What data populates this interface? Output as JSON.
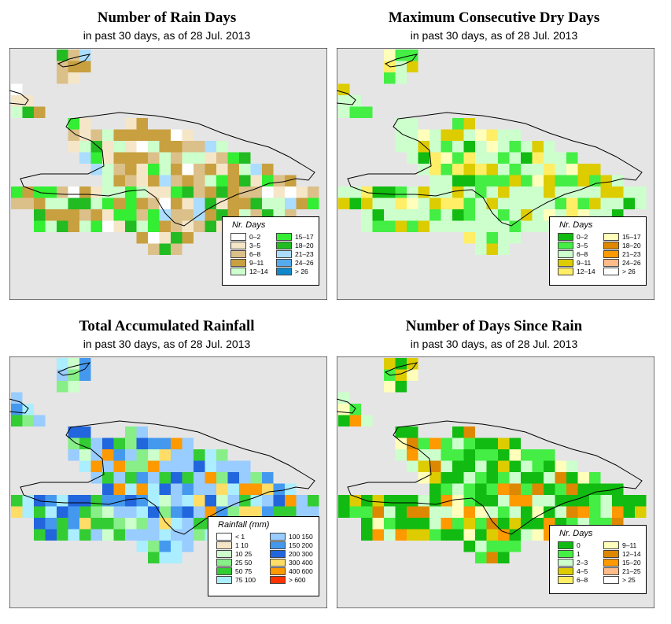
{
  "panels": [
    {
      "title": "Number of Rain Days",
      "subtitle": "in past 30 days, as of  28 Jul. 2013",
      "legend_title": "Nr. Days",
      "legend": [
        {
          "label": "0–2",
          "color": "#ffffff"
        },
        {
          "label": "3–5",
          "color": "#f5e6c8"
        },
        {
          "label": "6–8",
          "color": "#dcc08a"
        },
        {
          "label": "9–11",
          "color": "#c8a040"
        },
        {
          "label": "12–14",
          "color": "#ccffcc"
        },
        {
          "label": "15–17",
          "color": "#33ee33"
        },
        {
          "label": "18–20",
          "color": "#22bb22"
        },
        {
          "label": "21–23",
          "color": "#aaddff"
        },
        {
          "label": "24–26",
          "color": "#55aaee"
        },
        {
          "label": "> 26",
          "color": "#1188cc"
        }
      ]
    },
    {
      "title": "Maximum Consecutive Dry Days",
      "subtitle": "in past 30 days, as of  28 Jul. 2013",
      "legend_title": "Nr. Days",
      "legend": [
        {
          "label": "0–2",
          "color": "#11bb11"
        },
        {
          "label": "3–5",
          "color": "#44ee44"
        },
        {
          "label": "6–8",
          "color": "#ccffcc"
        },
        {
          "label": "9–11",
          "color": "#ddcc00"
        },
        {
          "label": "12–14",
          "color": "#ffee66"
        },
        {
          "label": "15–17",
          "color": "#ffffbb"
        },
        {
          "label": "18–20",
          "color": "#dd8800"
        },
        {
          "label": "21–23",
          "color": "#ff9900"
        },
        {
          "label": "24–26",
          "color": "#ffbb88"
        },
        {
          "label": "> 26",
          "color": "#ffffff"
        }
      ]
    },
    {
      "title": "Total Accumulated Rainfall",
      "subtitle": "in past 30 days, as of  28 Jul. 2013",
      "legend_title": "Rainfall (mm)",
      "legend": [
        {
          "label": "< 1",
          "color": "#ffffff"
        },
        {
          "label": "1   10",
          "color": "#f5e6c8"
        },
        {
          "label": "10   25",
          "color": "#ccffcc"
        },
        {
          "label": "25   50",
          "color": "#88ee88"
        },
        {
          "label": "50   75",
          "color": "#33cc33"
        },
        {
          "label": "75  100",
          "color": "#aaeeff"
        },
        {
          "label": "100  150",
          "color": "#99ccff"
        },
        {
          "label": "150  200",
          "color": "#4499ee"
        },
        {
          "label": "200  300",
          "color": "#2266dd"
        },
        {
          "label": "300  400",
          "color": "#ffdd66"
        },
        {
          "label": "400  600",
          "color": "#ff9900"
        },
        {
          "label": "> 600",
          "color": "#ff3300"
        }
      ]
    },
    {
      "title": "Number of Days Since Rain",
      "subtitle": "in past 30 days, as of  28 Jul. 2013",
      "legend_title": "Nr. Days",
      "legend": [
        {
          "label": "0",
          "color": "#11bb11"
        },
        {
          "label": "1",
          "color": "#44ee44"
        },
        {
          "label": "2–3",
          "color": "#ccffcc"
        },
        {
          "label": "4–5",
          "color": "#ddcc00"
        },
        {
          "label": "6–8",
          "color": "#ffee66"
        },
        {
          "label": "9–11",
          "color": "#ffffbb"
        },
        {
          "label": "12–14",
          "color": "#dd8800"
        },
        {
          "label": "15–20",
          "color": "#ff9900"
        },
        {
          "label": "21–25",
          "color": "#ffbb88"
        },
        {
          "label": "> 25",
          "color": "#ffffff"
        }
      ]
    }
  ]
}
